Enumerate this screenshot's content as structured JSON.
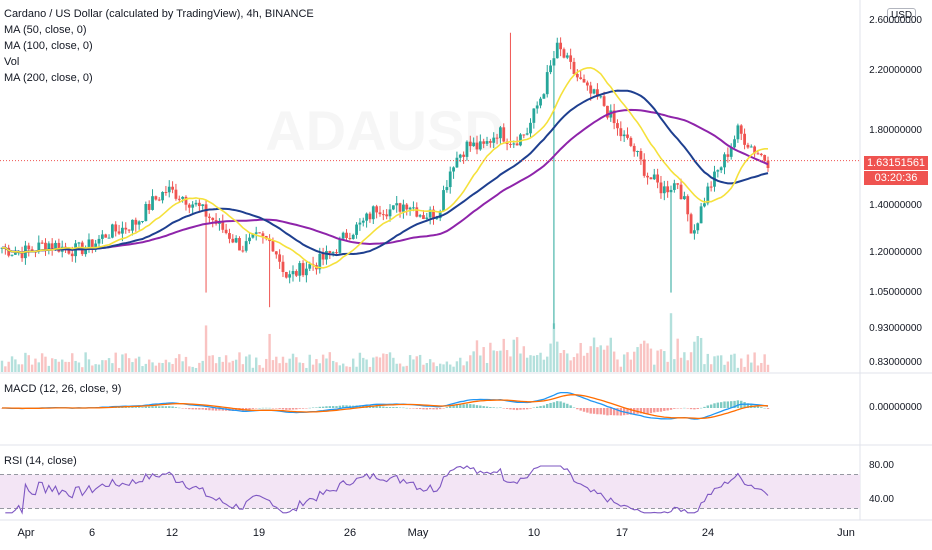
{
  "legend": {
    "symbol": "Cardano / US Dollar (calculated by TradingView), 4h, BINANCE",
    "ma50": "MA (50, close, 0)",
    "ma100": "MA (100, close, 0)",
    "vol": "Vol",
    "ma200": "MA (200, close, 0)"
  },
  "watermark": "ADAUSD",
  "macd_label": "MACD (12, 26, close, 9)",
  "rsi_label": "RSI (14, close)",
  "currency_badge": "USD",
  "last_price": "1.63151561",
  "countdown": "03:20:36",
  "colors": {
    "up": "#26a69a",
    "down": "#ef5350",
    "ma50": "#f5e13b",
    "ma100": "#1e3f8f",
    "ma200": "#8e24aa",
    "macd": "#2196f3",
    "signal": "#ff6d00",
    "rsi": "#7e57c2",
    "rsi_band": "#f3e5f5"
  },
  "chart_data": {
    "type": "candlestick",
    "price_axis_ticks": [
      "2.60000000",
      "2.20000000",
      "1.80000000",
      "1.40000000",
      "1.20000000",
      "1.05000000",
      "0.93000000",
      "0.83000000"
    ],
    "price_axis_scale": "log",
    "macd_axis_ticks": [
      "0.00000000"
    ],
    "rsi_axis_ticks": [
      "80.00",
      "40.00"
    ],
    "x_ticks": [
      "Apr",
      "6",
      "12",
      "19",
      "26",
      "May",
      "10",
      "17",
      "24",
      "Jun"
    ],
    "approx_close_series": [
      1.22,
      1.2,
      1.21,
      1.24,
      1.22,
      1.21,
      1.23,
      1.28,
      1.3,
      1.33,
      1.42,
      1.48,
      1.45,
      1.4,
      1.34,
      1.28,
      1.22,
      1.26,
      1.24,
      1.1,
      1.14,
      1.16,
      1.2,
      1.28,
      1.32,
      1.4,
      1.38,
      1.42,
      1.36,
      1.37,
      1.62,
      1.72,
      1.7,
      1.8,
      1.74,
      1.8,
      2.05,
      2.38,
      2.2,
      2.05,
      1.98,
      1.8,
      1.7,
      1.55,
      1.48,
      1.52,
      1.28,
      1.48,
      1.62,
      1.8,
      1.7,
      1.63
    ]
  }
}
